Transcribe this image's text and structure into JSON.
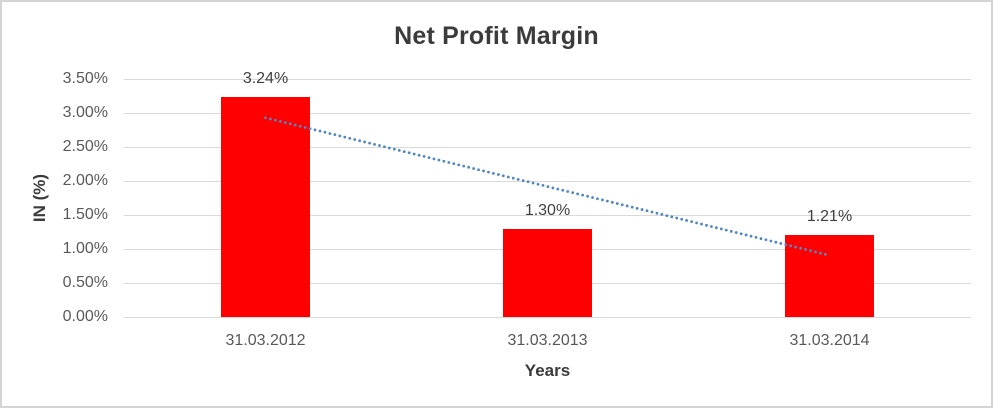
{
  "chart_data": {
    "type": "bar",
    "title": "Net Profit Margin",
    "xlabel": "Years",
    "ylabel": "IN (%)",
    "categories": [
      "31.03.2012",
      "31.03.2013",
      "31.03.2014"
    ],
    "values": [
      3.24,
      1.3,
      1.21
    ],
    "value_labels": [
      "3.24%",
      "1.30%",
      "1.21%"
    ],
    "y_ticks": [
      {
        "value": 0.0,
        "label": "0.00%"
      },
      {
        "value": 0.5,
        "label": "0.50%"
      },
      {
        "value": 1.0,
        "label": "1.00%"
      },
      {
        "value": 1.5,
        "label": "1.50%"
      },
      {
        "value": 2.0,
        "label": "2.00%"
      },
      {
        "value": 2.5,
        "label": "2.50%"
      },
      {
        "value": 3.0,
        "label": "3.00%"
      },
      {
        "value": 3.5,
        "label": "3.50%"
      }
    ],
    "ylim": [
      0,
      3.5
    ],
    "grid": true,
    "legend_position": "none",
    "bar_color": "#ff0000",
    "trendline": {
      "type": "linear",
      "style": "dotted",
      "color": "#4e86c6",
      "start_value": 2.93,
      "end_value": 0.92
    }
  },
  "colors": {
    "background": "#ffffff",
    "border": "#d4d4d4",
    "gridline": "#d9d9d9",
    "title_text": "#3b3b3b",
    "axis_text": "#595959",
    "data_label_text": "#404040",
    "bar": "#ff0000",
    "trendline": "#4e86c6"
  }
}
